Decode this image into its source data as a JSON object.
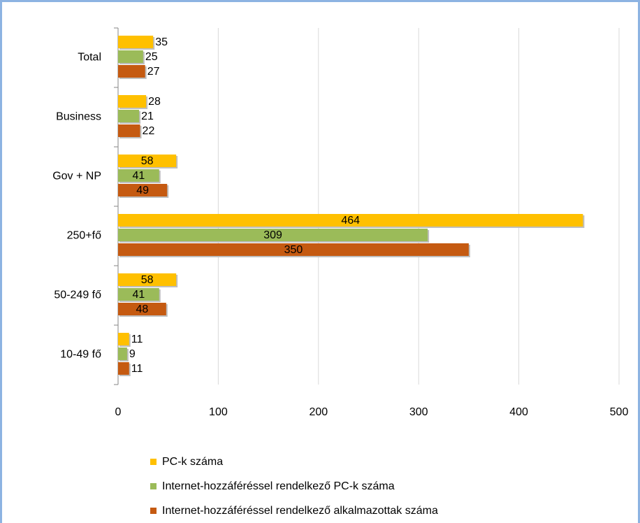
{
  "chart_data": {
    "type": "hbar",
    "categories": [
      "Total",
      "Business",
      "Gov + NP",
      "250+fő",
      "50-249 fő",
      "10-49 fő"
    ],
    "series": [
      {
        "name": "PC-k száma",
        "color": "#ffc000",
        "values": [
          35,
          28,
          58,
          464,
          58,
          11
        ]
      },
      {
        "name": "Internet-hozzáféréssel rendelkező PC-k száma",
        "color": "#9bbb59",
        "values": [
          25,
          21,
          41,
          309,
          41,
          9
        ]
      },
      {
        "name": "Internet-hozzáféréssel rendelkező alkalmazottak száma",
        "color": "#c55a11",
        "values": [
          27,
          22,
          49,
          350,
          48,
          11
        ]
      }
    ],
    "xlim": [
      0,
      500
    ],
    "xticks": [
      0,
      100,
      200,
      300,
      400,
      500
    ],
    "grid": true,
    "legend": "bottom"
  }
}
